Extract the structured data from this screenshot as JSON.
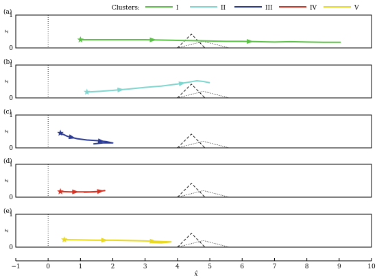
{
  "legend": {
    "title": "Clusters:",
    "items": [
      {
        "label": "I",
        "color": "#5bc146"
      },
      {
        "label": "II",
        "color": "#7fd6cf"
      },
      {
        "label": "III",
        "color": "#2a3a94"
      },
      {
        "label": "IV",
        "color": "#d63224"
      },
      {
        "label": "V",
        "color": "#e9d925"
      }
    ]
  },
  "chart_data": {
    "type": "line",
    "xlabel": "x̂",
    "ylabel": "z",
    "xlim": [
      -1,
      10
    ],
    "ylim": [
      0,
      1
    ],
    "x_ticks": [
      "−1",
      "0",
      "1",
      "2",
      "3",
      "4",
      "5",
      "6",
      "7",
      "8",
      "9",
      "10"
    ],
    "y_ticks": [
      "0",
      "1"
    ],
    "panels": [
      {
        "label": "(a)",
        "cluster": "I",
        "color": "#5bc146",
        "x": [
          1.0,
          1.5,
          2.0,
          2.5,
          3.0,
          3.5,
          4.0,
          4.5,
          5.0,
          5.5,
          6.0,
          6.5,
          7.0,
          7.5,
          8.0,
          8.5,
          9.05
        ],
        "y": [
          0.25,
          0.25,
          0.25,
          0.25,
          0.25,
          0.24,
          0.23,
          0.22,
          0.21,
          0.2,
          0.2,
          0.19,
          0.18,
          0.19,
          0.18,
          0.17,
          0.17
        ]
      },
      {
        "label": "(b)",
        "cluster": "II",
        "color": "#7fd6cf",
        "x": [
          1.2,
          1.6,
          2.0,
          2.5,
          3.0,
          3.5,
          4.0,
          4.3,
          4.6,
          4.8,
          5.0
        ],
        "y": [
          0.18,
          0.2,
          0.23,
          0.27,
          0.32,
          0.36,
          0.42,
          0.47,
          0.52,
          0.5,
          0.46
        ]
      },
      {
        "label": "(c)",
        "cluster": "III",
        "color": "#2a3a94",
        "x": [
          0.38,
          0.6,
          0.9,
          1.2,
          1.5,
          1.8,
          2.0,
          1.7,
          1.4
        ],
        "y": [
          0.45,
          0.35,
          0.28,
          0.24,
          0.22,
          0.19,
          0.15,
          0.15,
          0.12
        ]
      },
      {
        "label": "(d)",
        "cluster": "IV",
        "color": "#d63224",
        "x": [
          0.38,
          0.7,
          1.0,
          1.3,
          1.5,
          1.75,
          1.45,
          1.1
        ],
        "y": [
          0.17,
          0.16,
          0.16,
          0.16,
          0.17,
          0.2,
          0.16,
          0.15
        ]
      },
      {
        "label": "(e)",
        "cluster": "V",
        "color": "#e9d925",
        "x": [
          0.5,
          1.0,
          1.5,
          2.0,
          2.5,
          3.0,
          3.5,
          3.8,
          3.5,
          3.2
        ],
        "y": [
          0.23,
          0.22,
          0.21,
          0.21,
          0.2,
          0.19,
          0.17,
          0.16,
          0.13,
          0.14
        ]
      }
    ],
    "reference": {
      "vertical_dotted_x": 0,
      "dashed_hill": {
        "x": [
          4.0,
          4.43,
          4.85
        ],
        "y": [
          0,
          0.42,
          0
        ]
      },
      "dotted_hill": {
        "x": [
          4.0,
          4.8,
          5.6
        ],
        "y": [
          0,
          0.2,
          0
        ]
      }
    }
  }
}
